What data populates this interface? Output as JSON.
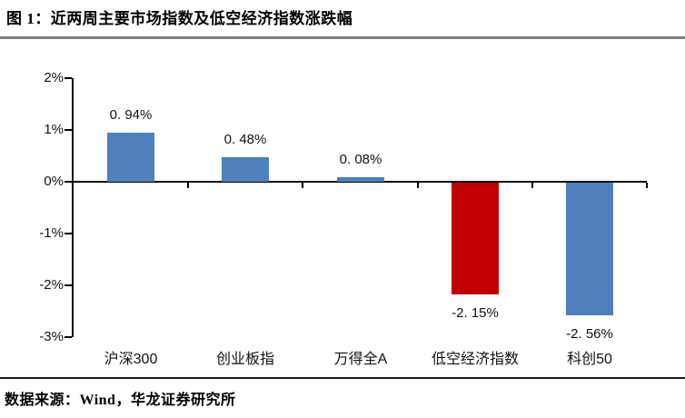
{
  "figure": {
    "title": "图 1：近两周主要市场指数及低空经济指数涨跌幅",
    "source": "数据来源：Wind，华龙证券研究所"
  },
  "colors": {
    "bar_blue": "#4e80bc",
    "bar_red": "#c00000",
    "axis": "#000000",
    "title_divider": "#7f7f7f",
    "footer_divider": "#1a1a1a"
  },
  "chart_data": {
    "type": "bar",
    "title": "近两周主要市场指数及低空经济指数涨跌幅",
    "categories": [
      "沪深300",
      "创业板指",
      "万得全A",
      "低空经济指数",
      "科创50"
    ],
    "values": [
      0.94,
      0.48,
      0.08,
      -2.15,
      -2.56
    ],
    "value_labels": [
      "0. 94%",
      "0. 48%",
      "0. 08%",
      "-2. 15%",
      "-2. 56%"
    ],
    "bar_colors": [
      "#4e80bc",
      "#4e80bc",
      "#4e80bc",
      "#c00000",
      "#4e80bc"
    ],
    "xlabel": "",
    "ylabel": "",
    "ylim": [
      -3,
      2
    ],
    "ytick_step": 1,
    "ytick_labels": [
      "2%",
      "1%",
      "0%",
      "-1%",
      "-2%",
      "-3%"
    ],
    "grid": false,
    "legend": "none",
    "value_label_position": "outside-end"
  }
}
